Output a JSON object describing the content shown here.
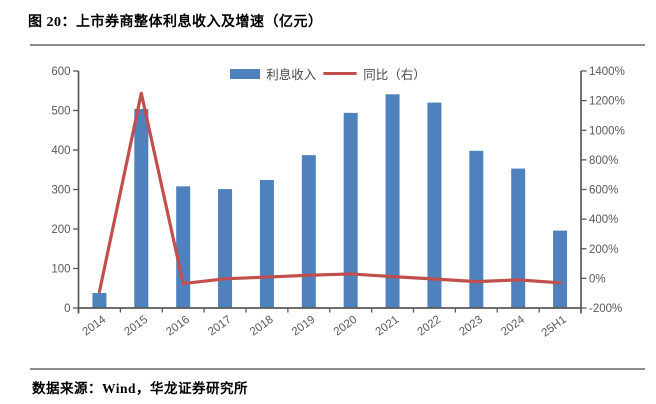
{
  "header": {
    "title": "图 20：上市券商整体利息收入及增速（亿元）"
  },
  "footer": {
    "source": "数据来源：Wind，华龙证券研究所"
  },
  "legend": [
    {
      "label": "利息收入",
      "type": "bar"
    },
    {
      "label": "同比（右）",
      "type": "line"
    }
  ],
  "colors": {
    "bar": "#4F81BD",
    "line": "#C0504D",
    "axis": "#595959",
    "tick_label": "#595959",
    "rule": "#8c8c8c",
    "title_text": "#000000"
  },
  "chart_data": {
    "type": "bar",
    "subtype": "bar+line-combo",
    "title": "上市券商整体利息收入及增速（亿元）",
    "categories": [
      "2014",
      "2015",
      "2016",
      "2017",
      "2018",
      "2019",
      "2020",
      "2021",
      "2022",
      "2023",
      "2024",
      "25H1"
    ],
    "series": [
      {
        "name": "利息收入",
        "type": "bar",
        "axis": "left",
        "values": [
          38,
          504,
          308,
          301,
          324,
          387,
          494,
          541,
          520,
          398,
          353,
          196
        ]
      },
      {
        "name": "同比（右）",
        "type": "line",
        "axis": "right",
        "unit": "%",
        "values": [
          -90,
          1250,
          -35,
          -3,
          9,
          21,
          30,
          12,
          -4,
          -22,
          -10,
          -30
        ]
      }
    ],
    "left_axis": {
      "min": 0,
      "max": 600,
      "step": 100,
      "suffix": ""
    },
    "right_axis": {
      "min": -200,
      "max": 1400,
      "step": 200,
      "suffix": "%"
    },
    "grid": false,
    "legend_position": "top-center",
    "x_label_rotation": -36
  }
}
